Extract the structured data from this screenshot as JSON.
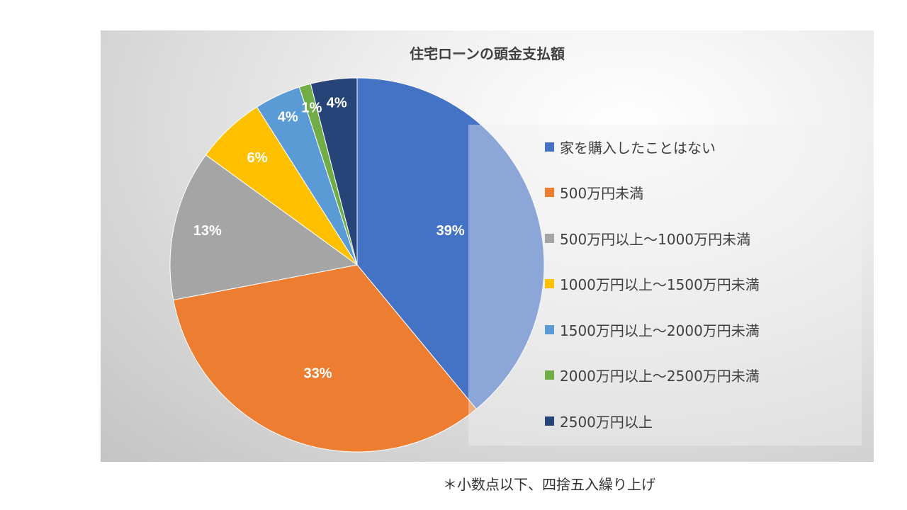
{
  "chart_data": {
    "type": "pie",
    "title": "住宅ローンの頭金支払額",
    "categories": [
      "家を購入したことはない",
      "500万円未満",
      "500万円以上～1000万円未満",
      "1000万円以上～1500万円未満",
      "1500万円以上～2000万円未満",
      "2000万円以上～2500万円未満",
      "2500万円以上"
    ],
    "values": [
      39,
      33,
      13,
      6,
      4,
      1,
      4
    ],
    "data_labels": [
      "39%",
      "33%",
      "13%",
      "6%",
      "4%",
      "1%",
      "4%"
    ],
    "colors": [
      "#4472C4",
      "#ED7D31",
      "#A5A5A5",
      "#FFC000",
      "#5B9BD5",
      "#70AD47",
      "#264478"
    ],
    "legend_position": "right"
  },
  "footnote": "＊小数点以下、四捨五入繰り上げ"
}
